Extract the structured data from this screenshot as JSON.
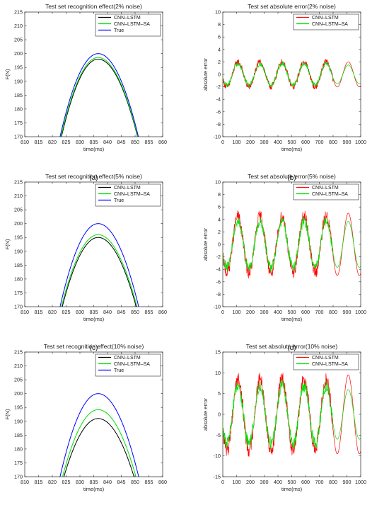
{
  "panels": [
    {
      "tag": "(a)",
      "title": "Test set recognition effect(2% noise)",
      "chart_data": {
        "type": "line",
        "title": "Test set recognition effect(2% noise)",
        "xlabel": "time(ms)",
        "ylabel": "F(N)",
        "xlim": [
          810,
          860
        ],
        "ylim": [
          170,
          215
        ],
        "xticks": [
          810,
          815,
          820,
          825,
          830,
          835,
          840,
          845,
          850,
          855,
          860
        ],
        "yticks": [
          170,
          175,
          180,
          185,
          190,
          195,
          200,
          205,
          210,
          215
        ],
        "legend_position": "top-right",
        "series": [
          {
            "name": "CNN–LSTM",
            "color": "#000000",
            "peak_x": 836.6,
            "peak_y": 198.0,
            "x_at_170": [
              823.3,
              850.9
            ]
          },
          {
            "name": "CNN–LSTM–SA",
            "color": "#00e000",
            "peak_x": 836.6,
            "peak_y": 198.6,
            "x_at_170": [
              823.1,
              851.0
            ]
          },
          {
            "name": "True",
            "color": "#0000ff",
            "peak_x": 836.6,
            "peak_y": 200.0,
            "x_at_170": [
              822.8,
              851.2
            ]
          }
        ]
      }
    },
    {
      "tag": "(b)",
      "title": "Test set absolute error(2% noise)",
      "chart_data": {
        "type": "line",
        "title": "Test set absolute error(2% noise)",
        "xlabel": "time(ms)",
        "ylabel": "absolute error",
        "xlim": [
          0,
          1000
        ],
        "ylim": [
          -10,
          10
        ],
        "xticks": [
          0,
          100,
          200,
          300,
          400,
          500,
          600,
          700,
          800,
          900,
          1000
        ],
        "yticks": [
          -10,
          -8,
          -6,
          -4,
          -2,
          0,
          2,
          4,
          6,
          8,
          10
        ],
        "legend_position": "top-right",
        "series": [
          {
            "name": "CNN–LSTM",
            "color": "#ff0000",
            "period_ms": 160,
            "amplitude": 2.0,
            "tail_amplitude": 2.0,
            "noise": 0.5,
            "peak_times": [
              110,
              270,
              430,
              590,
              750,
              915
            ]
          },
          {
            "name": "CNN–LSTM–SA",
            "color": "#00e000",
            "period_ms": 160,
            "amplitude": 1.7,
            "tail_amplitude": 1.5,
            "noise": 0.35,
            "peak_times": [
              110,
              270,
              430,
              590,
              750,
              915
            ]
          }
        ]
      }
    },
    {
      "tag": "(c)",
      "title": "Test set recognition effect(5% noise)",
      "chart_data": {
        "type": "line",
        "title": "Test set recognition effect(5% noise)",
        "xlabel": "time(ms)",
        "ylabel": "F(N)",
        "xlim": [
          810,
          860
        ],
        "ylim": [
          170,
          215
        ],
        "xticks": [
          810,
          815,
          820,
          825,
          830,
          835,
          840,
          845,
          850,
          855,
          860
        ],
        "yticks": [
          170,
          175,
          180,
          185,
          190,
          195,
          200,
          205,
          210,
          215
        ],
        "legend_position": "top-right",
        "series": [
          {
            "name": "CNN–LSTM",
            "color": "#000000",
            "peak_x": 836.6,
            "peak_y": 195.0,
            "x_at_170": [
              823.6,
              850.4
            ]
          },
          {
            "name": "CNN–LSTM–SA",
            "color": "#00e000",
            "peak_x": 836.6,
            "peak_y": 196.0,
            "x_at_170": [
              823.3,
              850.7
            ]
          },
          {
            "name": "True",
            "color": "#0000ff",
            "peak_x": 836.6,
            "peak_y": 200.0,
            "x_at_170": [
              822.8,
              851.3
            ]
          }
        ]
      }
    },
    {
      "tag": "(d)",
      "title": "Test set absolute error(5% noise)",
      "chart_data": {
        "type": "line",
        "title": "Test set absolute error(5% noise)",
        "xlabel": "time(ms)",
        "ylabel": "absolute error",
        "xlim": [
          0,
          1000
        ],
        "ylim": [
          -10,
          10
        ],
        "xticks": [
          0,
          100,
          200,
          300,
          400,
          500,
          600,
          700,
          800,
          900,
          1000
        ],
        "yticks": [
          -10,
          -8,
          -6,
          -4,
          -2,
          0,
          2,
          4,
          6,
          8,
          10
        ],
        "legend_position": "top-right",
        "series": [
          {
            "name": "CNN–LSTM",
            "color": "#ff0000",
            "period_ms": 160,
            "amplitude": 4.5,
            "tail_amplitude": 5.0,
            "noise": 1.0,
            "peak_times": [
              110,
              270,
              430,
              590,
              750,
              920
            ]
          },
          {
            "name": "CNN–LSTM–SA",
            "color": "#00e000",
            "period_ms": 160,
            "amplitude": 3.7,
            "tail_amplitude": 3.7,
            "noise": 0.8,
            "peak_times": [
              110,
              270,
              430,
              590,
              750,
              920
            ]
          }
        ]
      }
    },
    {
      "tag": "(e)",
      "title": "Test set recognition effect(10% noise)",
      "chart_data": {
        "type": "line",
        "title": "Test set recognition effect(10% noise)",
        "xlabel": "time(ms)",
        "ylabel": "F(N)",
        "xlim": [
          810,
          860
        ],
        "ylim": [
          170,
          215
        ],
        "xticks": [
          810,
          815,
          820,
          825,
          830,
          835,
          840,
          845,
          850,
          855,
          860
        ],
        "yticks": [
          170,
          175,
          180,
          185,
          190,
          195,
          200,
          205,
          210,
          215
        ],
        "legend_position": "top-right",
        "series": [
          {
            "name": "CNN–LSTM",
            "color": "#000000",
            "peak_x": 836.6,
            "peak_y": 191.0,
            "x_at_170": [
              824.2,
              849.6
            ]
          },
          {
            "name": "CNN–LSTM–SA",
            "color": "#00e000",
            "peak_x": 836.6,
            "peak_y": 194.2,
            "x_at_170": [
              823.7,
              850.3
            ]
          },
          {
            "name": "True",
            "color": "#0000ff",
            "peak_x": 836.6,
            "peak_y": 200.0,
            "x_at_170": [
              822.8,
              851.3
            ]
          }
        ]
      }
    },
    {
      "tag": "(f)",
      "title": "Test set absolute error(10% noise)",
      "chart_data": {
        "type": "line",
        "title": "Test set absolute error(10% noise)",
        "xlabel": "time(ms)",
        "ylabel": "absolute error",
        "xlim": [
          0,
          1000
        ],
        "ylim": [
          -15,
          15
        ],
        "xticks": [
          0,
          100,
          200,
          300,
          400,
          500,
          600,
          700,
          800,
          900,
          1000
        ],
        "yticks": [
          -15,
          -10,
          -5,
          0,
          5,
          10,
          15
        ],
        "legend_position": "top-right",
        "series": [
          {
            "name": "CNN–LSTM",
            "color": "#ff0000",
            "period_ms": 160,
            "amplitude": 8.5,
            "tail_amplitude": 9.5,
            "noise": 1.8,
            "peak_times": [
              110,
              270,
              430,
              590,
              750,
              920
            ]
          },
          {
            "name": "CNN–LSTM–SA",
            "color": "#00e000",
            "period_ms": 160,
            "amplitude": 7.0,
            "tail_amplitude": 6.0,
            "noise": 1.5,
            "peak_times": [
              110,
              270,
              430,
              590,
              750,
              920
            ]
          }
        ]
      }
    }
  ]
}
